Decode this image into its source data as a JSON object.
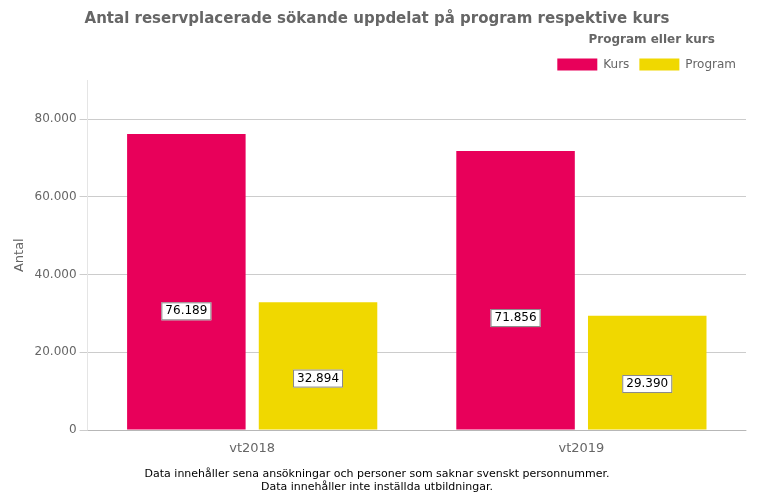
{
  "chart_data": {
    "type": "bar",
    "title": "Antal reservplacerade sökande uppdelat på program respektive kurs",
    "categories": [
      "vt2018",
      "vt2019"
    ],
    "series": [
      {
        "name": "Kurs",
        "color": "#E8005A",
        "values": [
          76189,
          71856
        ],
        "value_labels": [
          "76.189",
          "71.856"
        ]
      },
      {
        "name": "Program",
        "color": "#F0D800",
        "values": [
          32894,
          29390
        ],
        "value_labels": [
          "32.894",
          "29.390"
        ]
      }
    ],
    "ylabel": "Antal",
    "ylim": [
      0,
      90000
    ],
    "yticks": [
      0,
      {
        "value": 20000,
        "label": "20.000"
      },
      {
        "value": 40000,
        "label": "40.000"
      },
      {
        "value": 60000,
        "label": "60.000"
      },
      {
        "value": 80000,
        "label": "80.000"
      }
    ],
    "legend_title": "Program eller kurs",
    "legend": "upper right",
    "grid": true,
    "data_labels": true,
    "annotations": [
      "Data innehåller sena ansökningar och personer som saknar svenskt personnummer.",
      "Data innehåller inte inställda utbildningar."
    ]
  }
}
